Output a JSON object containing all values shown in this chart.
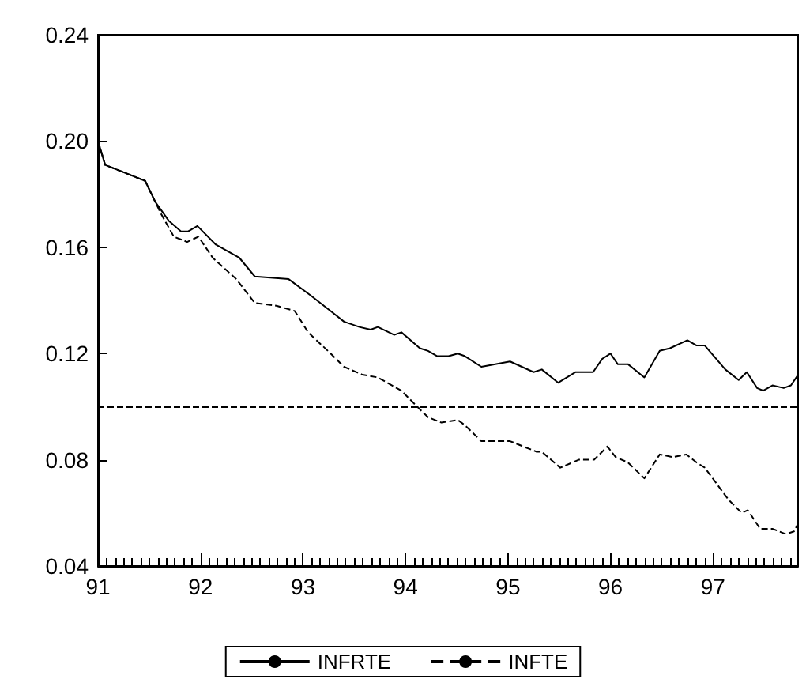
{
  "chart_data": {
    "type": "line",
    "xlim": [
      91,
      97.83
    ],
    "xticks": [
      91,
      92,
      93,
      94,
      95,
      96,
      97
    ],
    "ylim": [
      0.04,
      0.24
    ],
    "yticks": [
      0.04,
      0.08,
      0.12,
      0.16,
      {
        "value": 0.2,
        "label": "0.20"
      },
      0.24
    ],
    "grid": false,
    "legend": "bottom",
    "marker": "none",
    "series": [
      {
        "name": "INFRTE",
        "color": "#000000",
        "line_style": "solid",
        "x": [
          91.0,
          91.07,
          91.46,
          91.56,
          91.69,
          91.81,
          91.88,
          91.97,
          92.15,
          92.38,
          92.53,
          92.86,
          93.07,
          93.27,
          93.4,
          93.55,
          93.66,
          93.73,
          93.89,
          93.96,
          94.14,
          94.22,
          94.31,
          94.42,
          94.51,
          94.58,
          94.74,
          95.02,
          95.25,
          95.33,
          95.49,
          95.66,
          95.83,
          95.92,
          96.0,
          96.07,
          96.17,
          96.33,
          96.48,
          96.58,
          96.75,
          96.84,
          96.92,
          97.12,
          97.25,
          97.33,
          97.43,
          97.49,
          97.58,
          97.69,
          97.76,
          97.83
        ],
        "values": [
          0.2,
          0.191,
          0.185,
          0.177,
          0.17,
          0.166,
          0.166,
          0.168,
          0.161,
          0.156,
          0.149,
          0.148,
          0.142,
          0.136,
          0.132,
          0.13,
          0.129,
          0.13,
          0.127,
          0.128,
          0.122,
          0.121,
          0.119,
          0.119,
          0.12,
          0.119,
          0.115,
          0.117,
          0.113,
          0.114,
          0.109,
          0.113,
          0.113,
          0.118,
          0.12,
          0.116,
          0.116,
          0.111,
          0.121,
          0.122,
          0.125,
          0.123,
          0.123,
          0.114,
          0.11,
          0.113,
          0.107,
          0.106,
          0.108,
          0.107,
          0.108,
          0.112
        ]
      },
      {
        "name": "INFTE",
        "color": "#000000",
        "line_style": "dashed",
        "x": [
          91.0,
          91.07,
          91.46,
          91.56,
          91.61,
          91.74,
          91.87,
          91.98,
          92.12,
          92.35,
          92.53,
          92.74,
          92.92,
          93.05,
          93.27,
          93.4,
          93.58,
          93.73,
          93.96,
          94.14,
          94.22,
          94.35,
          94.51,
          94.58,
          94.74,
          95.02,
          95.28,
          95.33,
          95.51,
          95.69,
          95.84,
          95.97,
          96.05,
          96.17,
          96.33,
          96.48,
          96.61,
          96.74,
          96.84,
          96.92,
          97.15,
          97.28,
          97.34,
          97.46,
          97.58,
          97.71,
          97.79,
          97.83
        ],
        "values": [
          0.2,
          0.191,
          0.185,
          0.177,
          0.173,
          0.164,
          0.162,
          0.164,
          0.156,
          0.148,
          0.139,
          0.138,
          0.136,
          0.128,
          0.12,
          0.115,
          0.112,
          0.111,
          0.106,
          0.099,
          0.096,
          0.094,
          0.095,
          0.093,
          0.087,
          0.087,
          0.083,
          0.083,
          0.077,
          0.08,
          0.08,
          0.085,
          0.081,
          0.079,
          0.073,
          0.082,
          0.081,
          0.082,
          0.079,
          0.077,
          0.065,
          0.06,
          0.061,
          0.054,
          0.054,
          0.052,
          0.053,
          0.056
        ]
      }
    ],
    "ref_lines": [
      {
        "axis": "y",
        "value": 0.1,
        "color": "#000000",
        "line_style": "dashed"
      }
    ]
  }
}
